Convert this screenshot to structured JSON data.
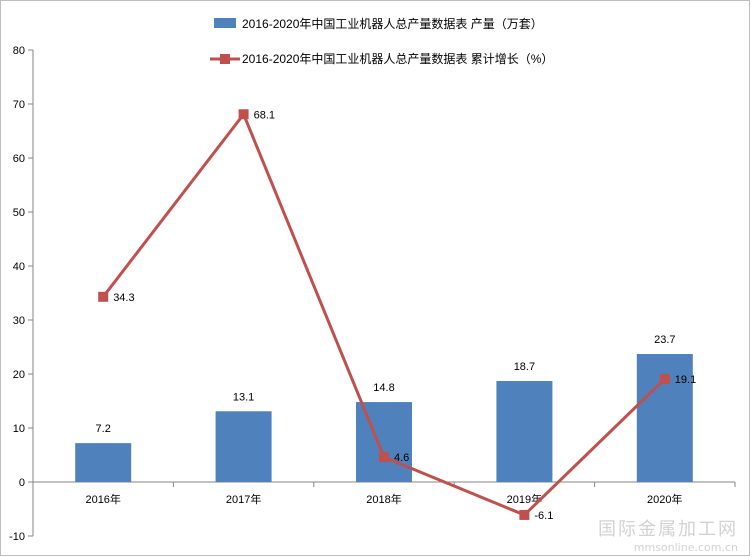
{
  "chart_data": {
    "type": "bar+line",
    "categories": [
      "2016年",
      "2017年",
      "2018年",
      "2019年",
      "2020年"
    ],
    "series": [
      {
        "name": "2016-2020年中国工业机器人总产量数据表 产量（万套）",
        "type": "bar",
        "values": [
          7.2,
          13.1,
          14.8,
          18.7,
          23.7
        ],
        "color": "#4f81bd"
      },
      {
        "name": "2016-2020年中国工业机器人总产量数据表 累计增长（%）",
        "type": "line",
        "values": [
          34.3,
          68.1,
          4.6,
          -6.1,
          19.1
        ],
        "color": "#c0504d"
      }
    ],
    "ylim": [
      -10,
      80
    ],
    "yticks": [
      -10,
      0,
      10,
      20,
      30,
      40,
      50,
      60,
      70,
      80
    ],
    "grid": false,
    "legend_position": "top-center"
  },
  "watermark": {
    "text": "国际金属加工网",
    "url": "mmsonline.com.cn"
  }
}
